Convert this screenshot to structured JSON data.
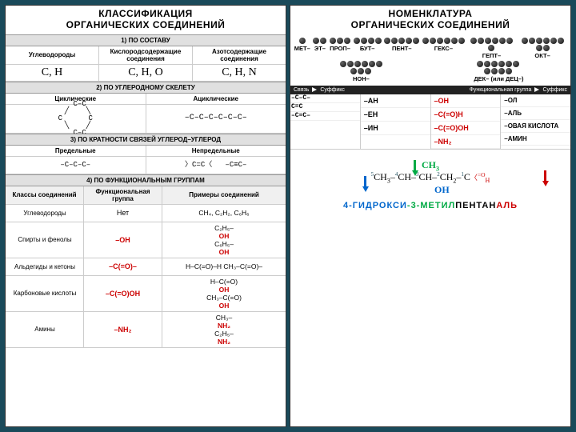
{
  "left": {
    "title": "КЛАССИФИКАЦИЯ\nОРГАНИЧЕСКИХ СОЕДИНЕНИЙ",
    "s1_head": "1) ПО СОСТАВУ",
    "comp": {
      "h1": "Углеводороды",
      "h2": "Кислородсодержащие соединения",
      "h3": "Азотсодержащие соединения",
      "f1": "C, H",
      "f2": "C, H, O",
      "f3": "C, H, N"
    },
    "s2_head": "2) ПО УГЛЕРОДНОМУ СКЕЛЕТУ",
    "skel": {
      "h1": "Циклические",
      "h2": "Ациклические"
    },
    "s3_head": "3) ПО КРАТНОСТИ СВЯЗЕЙ УГЛЕРОД–УГЛЕРОД",
    "bond": {
      "h1": "Предельные",
      "h2": "Непредельные"
    },
    "s4_head": "4) ПО ФУНКЦИОНАЛЬНЫМ ГРУППАМ",
    "func_head": {
      "c1": "Классы соединений",
      "c2": "Функциональная группа",
      "c3": "Примеры соединений"
    },
    "func_rows": [
      {
        "cls": "Углеводороды",
        "grp": "Нет",
        "grp_red": false,
        "ex": "CH₄, C₂H₂, C₆H₆"
      },
      {
        "cls": "Спирты и фенолы",
        "grp": "–OH",
        "grp_red": true,
        "ex": "C₂H₅–OH  C₆H₅–OH"
      },
      {
        "cls": "Альдегиды и кетоны",
        "grp": "–C(=O)–",
        "grp_red": true,
        "ex": "H–C(=O)–H  CH₃–C(=O)–"
      },
      {
        "cls": "Карбоновые кислоты",
        "grp": "–C(=O)OH",
        "grp_red": true,
        "ex": "H–C(=O)OH  CH₃–C(=O)OH"
      },
      {
        "cls": "Амины",
        "grp": "–NH₂",
        "grp_red": true,
        "ex": "CH₃–NH₂  C₂H₅–NH₂"
      }
    ]
  },
  "right": {
    "title": "НОМЕНКЛАТУРА\nОРГАНИЧЕСКИХ СОЕДИНЕНИЙ",
    "prefixes": [
      {
        "label": "МЕТ–",
        "n": 1
      },
      {
        "label": "ЭТ–",
        "n": 2
      },
      {
        "label": "ПРОП–",
        "n": 3
      },
      {
        "label": "БУТ–",
        "n": 4
      },
      {
        "label": "ПЕНТ–",
        "n": 5
      },
      {
        "label": "ГЕКС–",
        "n": 6
      },
      {
        "label": "ГЕПТ–",
        "n": 7
      },
      {
        "label": "ОКТ–",
        "n": 8
      },
      {
        "label": "НОН–",
        "n": 9
      },
      {
        "label": "ДЕК– (или ДЕЦ–)",
        "n": 10
      }
    ],
    "bondbar": {
      "a": "Связь",
      "b": "Суффикс",
      "c": "Функциональная группа",
      "d": "Суффикс"
    },
    "suf_bond": [
      {
        "struct": "–C–C–",
        "suf": "–АН"
      },
      {
        "struct": "C=C",
        "suf": "–ЕН"
      },
      {
        "struct": "–C≡C–",
        "suf": "–ИН"
      }
    ],
    "suf_func": [
      {
        "grp": "–OH",
        "suf": "–ОЛ"
      },
      {
        "grp": "–C(=O)H",
        "suf": "–АЛЬ"
      },
      {
        "grp": "–C(=O)OH",
        "suf": "–ОВАЯ КИСЛОТА"
      },
      {
        "grp": "–NH₂",
        "suf": "–АМИН"
      }
    ],
    "example": {
      "name_parts": [
        {
          "t": "4-",
          "c": "blue"
        },
        {
          "t": "ГИДРОКСИ",
          "c": "blue"
        },
        {
          "t": "-3-",
          "c": "green"
        },
        {
          "t": "МЕТИЛ",
          "c": "green"
        },
        {
          "t": "ПЕНТАН",
          "c": ""
        },
        {
          "t": "АЛЬ",
          "c": "redtxt"
        }
      ]
    }
  },
  "colors": {
    "bg": "#1a4a5a",
    "red": "#c00",
    "blue": "#0066cc",
    "green": "#00aa44"
  }
}
